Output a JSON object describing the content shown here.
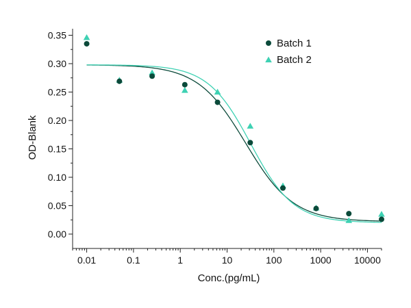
{
  "chart_data": {
    "type": "scatter",
    "xlabel": "Conc.(pg/mL)",
    "ylabel": "OD-Blank",
    "x_scale": "log",
    "xlim": [
      0.005,
      20000
    ],
    "ylim": [
      0,
      0.36
    ],
    "x_ticks": [
      {
        "value": 0.01,
        "label": "0.01"
      },
      {
        "value": 0.1,
        "label": "0.1"
      },
      {
        "value": 1,
        "label": "1"
      },
      {
        "value": 10,
        "label": "10"
      },
      {
        "value": 100,
        "label": "100"
      },
      {
        "value": 1000,
        "label": "1000"
      },
      {
        "value": 10000,
        "label": "10000"
      }
    ],
    "y_ticks": [
      {
        "value": 0.0,
        "label": "0.00"
      },
      {
        "value": 0.05,
        "label": "0.05"
      },
      {
        "value": 0.1,
        "label": "0.10"
      },
      {
        "value": 0.15,
        "label": "0.15"
      },
      {
        "value": 0.2,
        "label": "0.20"
      },
      {
        "value": 0.25,
        "label": "0.25"
      },
      {
        "value": 0.3,
        "label": "0.30"
      },
      {
        "value": 0.35,
        "label": "0.35"
      }
    ],
    "grid": false,
    "legend_position": "top-right",
    "series": [
      {
        "name": "Batch 1",
        "marker": "circle",
        "color": "#0b4a3a",
        "x": [
          0.01,
          0.05,
          0.25,
          1.25,
          6.25,
          31.25,
          156,
          800,
          4000,
          20000
        ],
        "y": [
          0.335,
          0.269,
          0.278,
          0.263,
          0.232,
          0.161,
          0.081,
          0.045,
          0.036,
          0.026
        ],
        "fit": {
          "top": 0.298,
          "bottom": 0.022,
          "ec50": 25,
          "hill": 0.85
        }
      },
      {
        "name": "Batch 2",
        "marker": "triangle",
        "color": "#3ed1b3",
        "x": [
          0.01,
          0.05,
          0.25,
          1.25,
          6.25,
          31.25,
          156,
          800,
          4000,
          20000
        ],
        "y": [
          0.346,
          0.271,
          0.284,
          0.253,
          0.25,
          0.19,
          0.085,
          0.046,
          0.024,
          0.035
        ],
        "fit": {
          "top": 0.298,
          "bottom": 0.02,
          "ec50": 32,
          "hill": 0.95
        }
      }
    ]
  }
}
